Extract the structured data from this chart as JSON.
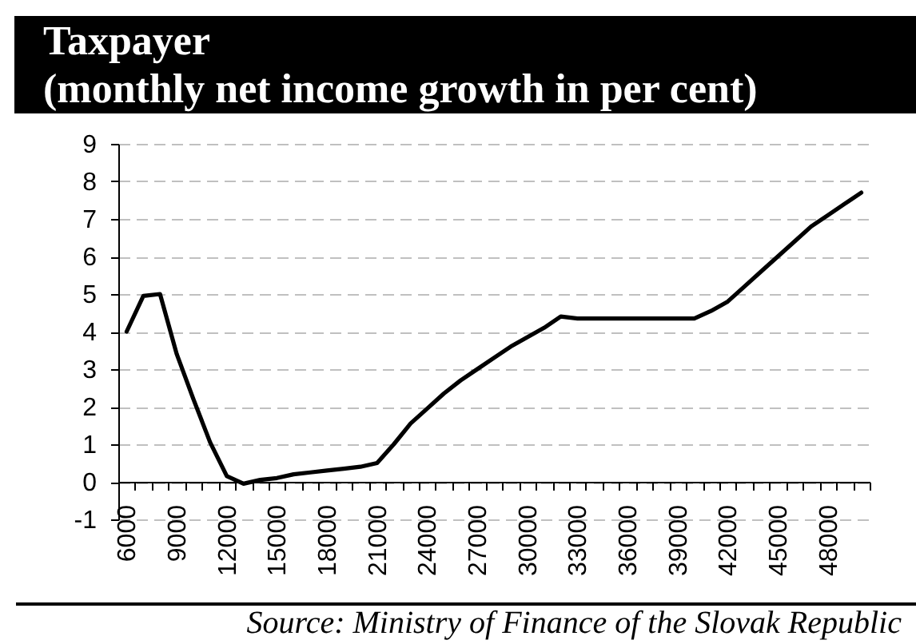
{
  "chart_data": {
    "type": "line",
    "title": "Taxpayer",
    "subtitle": "(monthly net income growth in per cent)",
    "annotations": [
      "Source: Ministry of Finance of the Slovak Republic"
    ],
    "categories": [
      "6000",
      null,
      null,
      "9000",
      null,
      null,
      "12000",
      null,
      null,
      "15000",
      null,
      null,
      "18000",
      null,
      null,
      "21000",
      null,
      null,
      "24000",
      null,
      null,
      "27000",
      null,
      null,
      "30000",
      null,
      null,
      "33000",
      null,
      null,
      "36000",
      null,
      null,
      "39000",
      null,
      null,
      "42000",
      null,
      null,
      "45000",
      null,
      null,
      "48000",
      null,
      null
    ],
    "series": [
      {
        "color": "#000000",
        "values": [
          4.0,
          4.95,
          5.0,
          3.4,
          2.2,
          1.05,
          0.15,
          -0.05,
          0.05,
          0.1,
          0.2,
          0.25,
          0.3,
          0.35,
          0.4,
          0.5,
          1.0,
          1.55,
          1.95,
          2.35,
          2.7,
          3.0,
          3.3,
          3.6,
          3.85,
          4.1,
          4.4,
          4.35,
          4.35,
          4.35,
          4.35,
          4.35,
          4.35,
          4.35,
          4.35,
          4.55,
          4.8,
          5.2,
          5.6,
          6.0,
          6.4,
          6.8,
          7.1,
          7.4,
          7.7
        ]
      }
    ],
    "ylim": [
      -1,
      9
    ],
    "yticks": [
      -1,
      0,
      1,
      2,
      3,
      4,
      5,
      6,
      7,
      8,
      9
    ],
    "grid": "y"
  }
}
